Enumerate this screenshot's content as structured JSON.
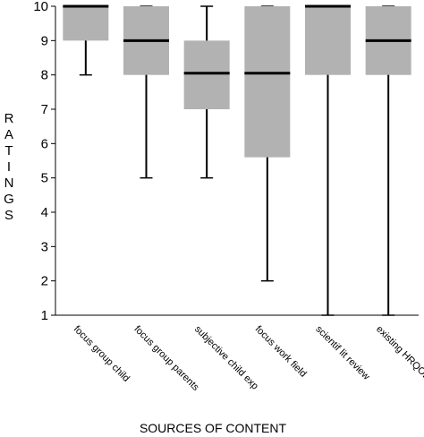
{
  "chart_data": {
    "type": "boxplot",
    "title": "",
    "xlabel": "SOURCES OF CONTENT",
    "ylabel": "RATINGS",
    "ylim": [
      1,
      10
    ],
    "yticks": [
      "1",
      "2",
      "3",
      "4",
      "5",
      "6",
      "7",
      "8",
      "9",
      "10"
    ],
    "grid": false,
    "box_color": "#b2b2b2",
    "categories": [
      "focus group child",
      "focus group parents",
      "subjective child exp",
      "focus work field",
      "scientif lit review",
      "existing HRQOL scales"
    ],
    "boxes": [
      {
        "min": 8,
        "q1": 9,
        "median": 10,
        "q3": 10,
        "max": 10
      },
      {
        "min": 5,
        "q1": 8,
        "median": 9,
        "q3": 10,
        "max": 10
      },
      {
        "min": 5,
        "q1": 7,
        "median": 8.05,
        "q3": 9,
        "max": 10
      },
      {
        "min": 2,
        "q1": 5.6,
        "median": 8.05,
        "q3": 10,
        "max": 10
      },
      {
        "min": 1,
        "q1": 8,
        "median": 10,
        "q3": 10,
        "max": 10
      },
      {
        "min": 1,
        "q1": 8,
        "median": 9,
        "q3": 10,
        "max": 10
      }
    ]
  }
}
